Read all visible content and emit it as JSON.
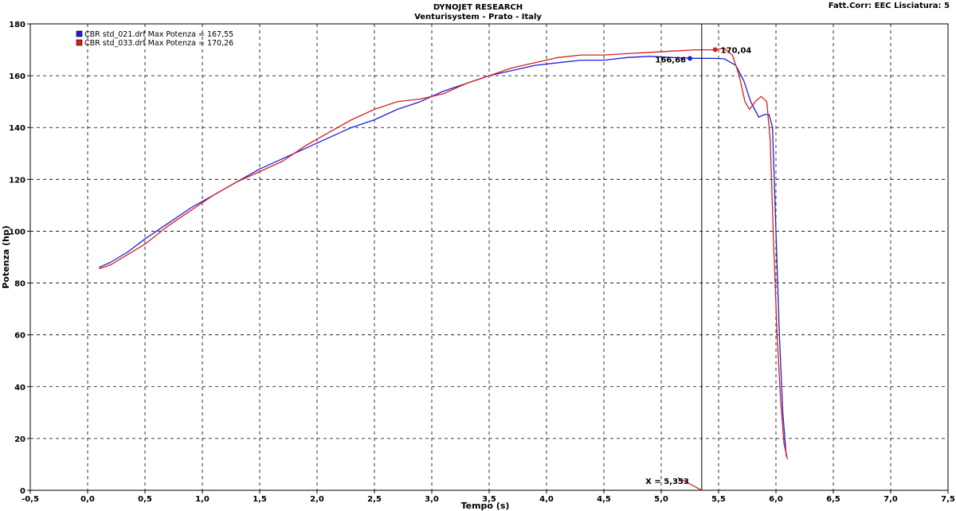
{
  "header": {
    "title": "DYNOJET RESEARCH",
    "subtitle": "Venturisystem - Prato - Italy",
    "settings": "Fatt.Corr: EEC  Lisciatura: 5"
  },
  "chart_data": {
    "type": "line",
    "xlabel": "Tempo (s)",
    "ylabel": "Potenza (hp)",
    "xlim": [
      -0.5,
      7.5
    ],
    "ylim": [
      0,
      180
    ],
    "x_ticks": [
      "-0,5",
      "0,0",
      "0,5",
      "1,0",
      "1,5",
      "2,0",
      "2,5",
      "3,0",
      "3,5",
      "4,0",
      "4,5",
      "5,0",
      "5,5",
      "6,0",
      "6,5",
      "7,0",
      "7,5"
    ],
    "y_ticks": [
      "0",
      "20",
      "40",
      "60",
      "80",
      "100",
      "120",
      "140",
      "160",
      "180"
    ],
    "grid": true,
    "legend_position": "top-left",
    "series": [
      {
        "name": "CBR std_021.drf Max Potenza = 167,55",
        "color": "#1f1fd6",
        "x": [
          0.1,
          0.2,
          0.35,
          0.5,
          0.7,
          0.9,
          1.1,
          1.3,
          1.5,
          1.7,
          1.9,
          2.1,
          2.3,
          2.5,
          2.7,
          2.9,
          3.1,
          3.3,
          3.5,
          3.7,
          3.9,
          4.1,
          4.3,
          4.5,
          4.7,
          4.9,
          5.1,
          5.3,
          5.45,
          5.55,
          5.65,
          5.72,
          5.78,
          5.85,
          5.9,
          5.94,
          5.97,
          6.0,
          6.03,
          6.06,
          6.09
        ],
        "y": [
          86,
          88,
          92,
          97,
          103,
          109,
          114,
          119,
          124,
          128,
          132,
          136,
          140,
          143,
          147,
          150,
          154,
          157,
          160,
          162,
          164,
          165,
          166,
          166,
          167,
          167.5,
          167,
          166.7,
          166.7,
          166.5,
          164,
          158,
          150,
          144,
          145,
          145,
          140,
          100,
          60,
          30,
          13
        ]
      },
      {
        "name": "CBR std_033.drf Max Potenza = 170,26",
        "color": "#d62020",
        "x": [
          0.1,
          0.2,
          0.35,
          0.5,
          0.7,
          0.9,
          1.1,
          1.3,
          1.5,
          1.7,
          1.9,
          2.1,
          2.3,
          2.5,
          2.7,
          2.9,
          3.1,
          3.3,
          3.5,
          3.7,
          3.9,
          4.1,
          4.3,
          4.5,
          4.7,
          4.9,
          5.1,
          5.3,
          5.45,
          5.55,
          5.62,
          5.68,
          5.73,
          5.77,
          5.82,
          5.87,
          5.92,
          5.95,
          5.98,
          6.01,
          6.04,
          6.07,
          6.1
        ],
        "y": [
          85.5,
          87,
          91,
          95,
          102,
          108,
          114,
          119,
          123,
          127,
          133,
          138,
          143,
          147,
          150,
          151,
          153,
          157,
          160,
          163,
          165,
          167,
          168,
          168,
          168.5,
          169,
          169.5,
          170,
          170,
          170.5,
          168,
          160,
          150,
          147,
          150,
          152,
          150,
          135,
          95,
          60,
          35,
          18,
          12
        ]
      }
    ],
    "annotations": {
      "marker_blue": {
        "x": 5.25,
        "y": 166.66,
        "label": "166,66"
      },
      "marker_red": {
        "x": 5.47,
        "y": 170.04,
        "label": "170,04"
      },
      "cursor": {
        "x": 5.353,
        "label": "X = 5,353"
      }
    }
  }
}
